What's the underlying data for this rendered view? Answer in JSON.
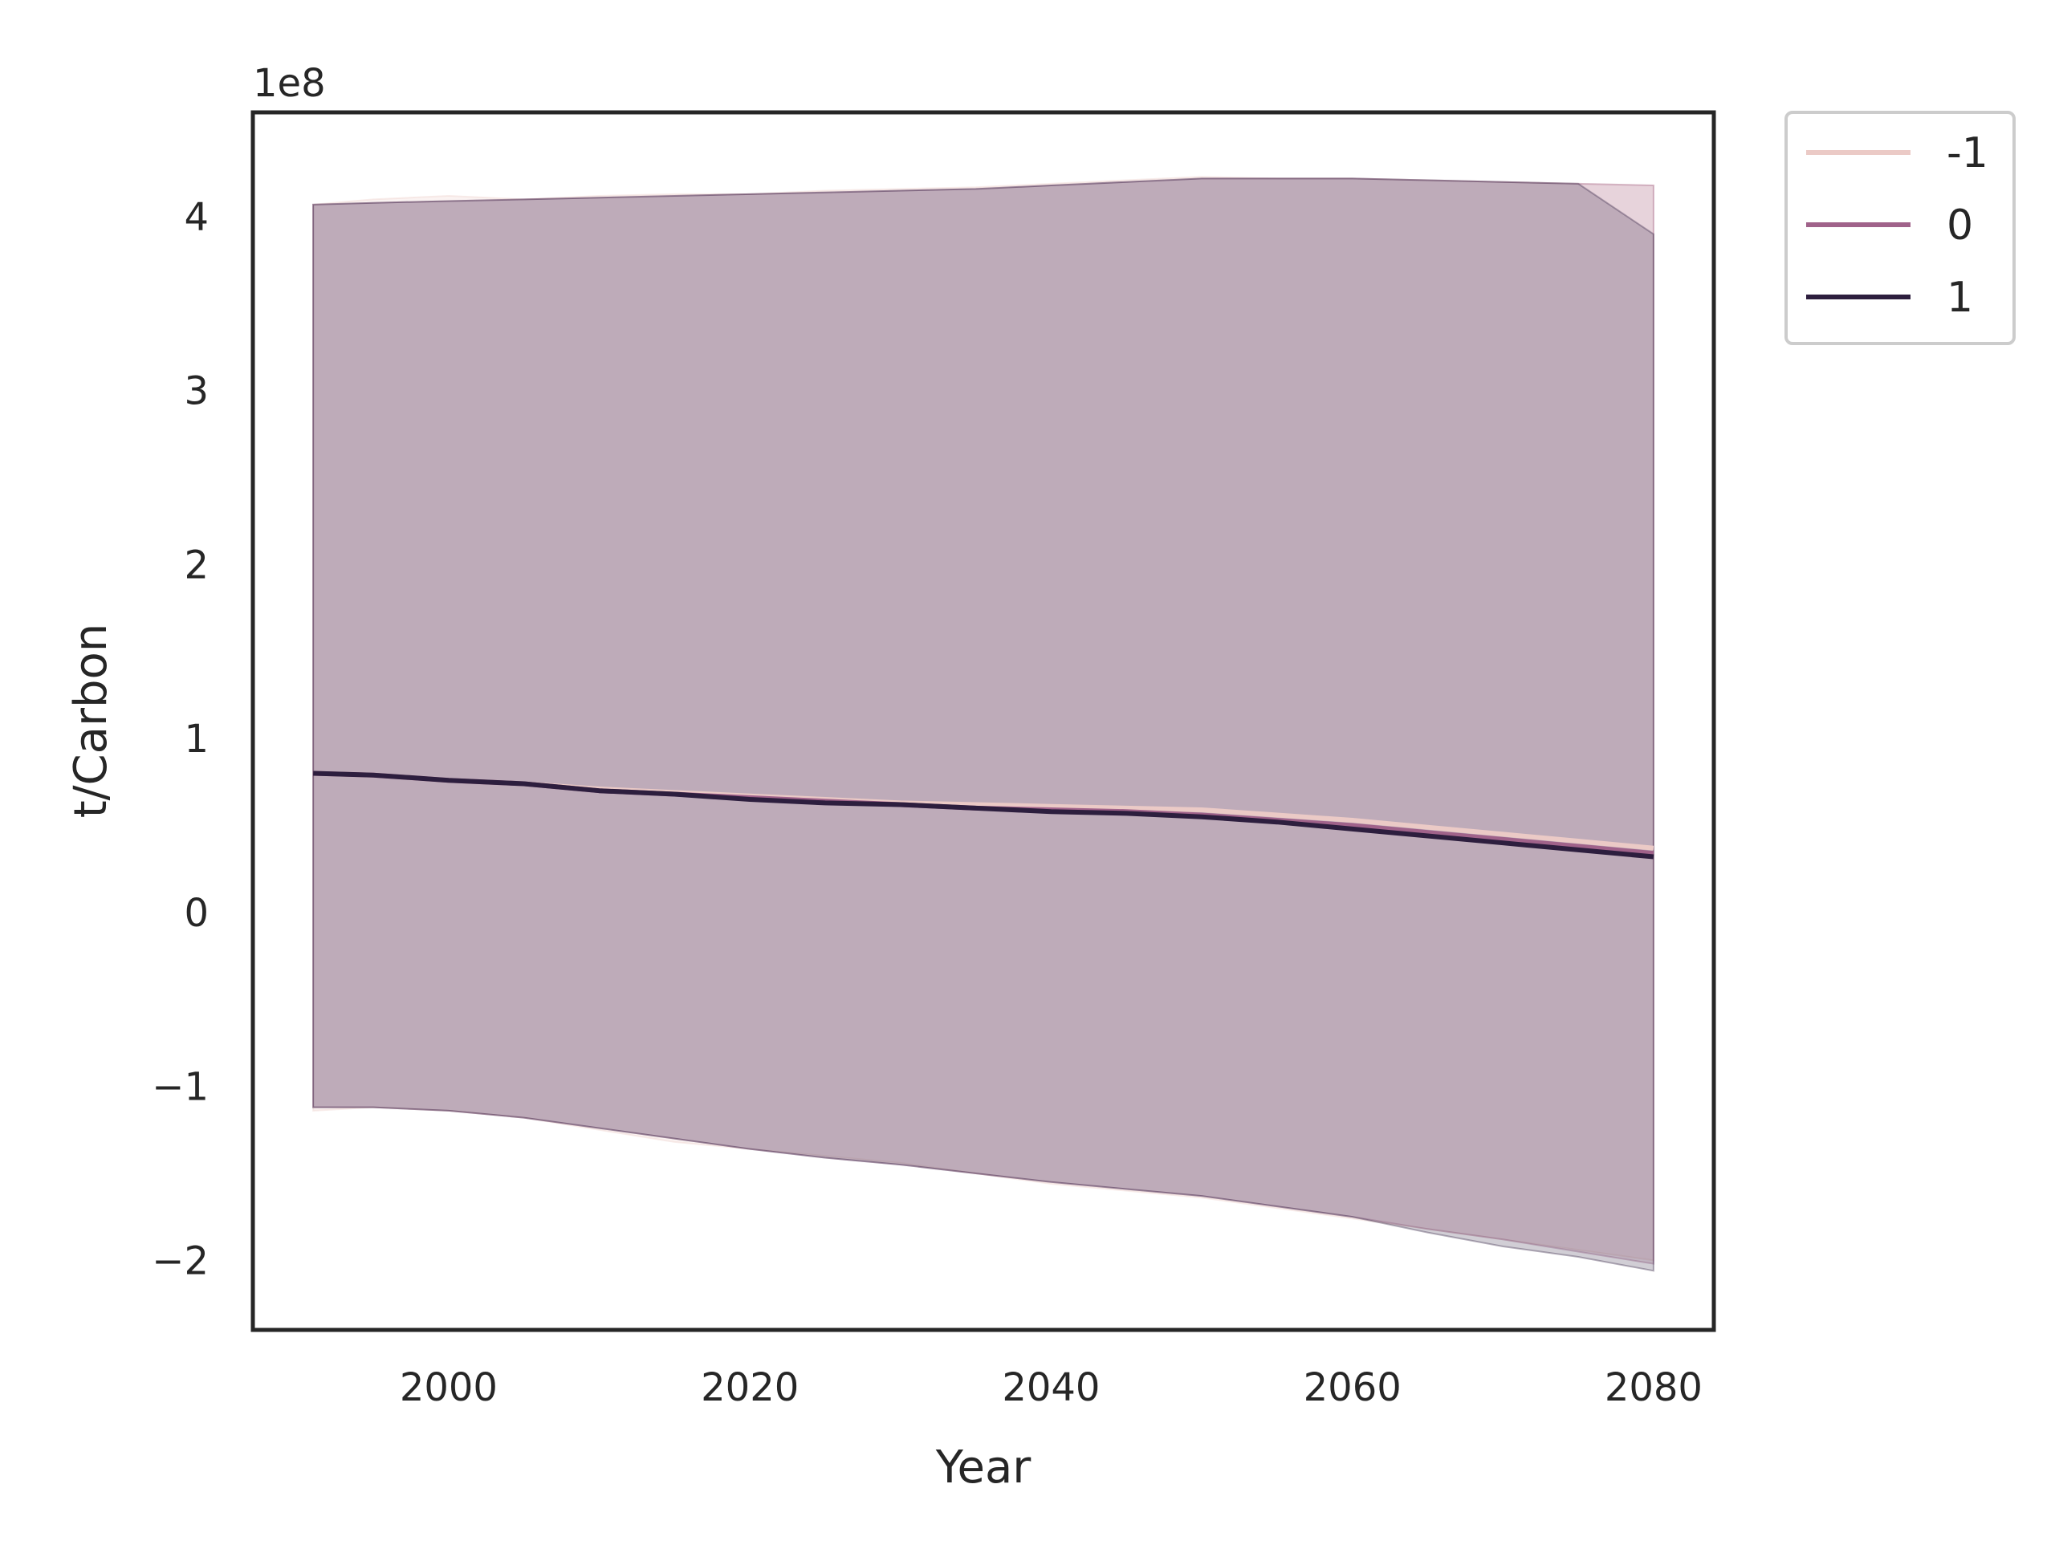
{
  "chart_data": {
    "type": "line",
    "xlabel": "Year",
    "ylabel": "t/Carbon",
    "offset_label": "1e8",
    "xlim": [
      1987,
      2084
    ],
    "ylim": [
      -2.4,
      4.6
    ],
    "xticks": [
      2000,
      2020,
      2040,
      2060,
      2080
    ],
    "xtick_labels": [
      "2000",
      "2020",
      "2040",
      "2060",
      "2080"
    ],
    "yticks": [
      -2,
      -1,
      0,
      1,
      2,
      3,
      4
    ],
    "ytick_labels": [
      "−2",
      "−1",
      "0",
      "1",
      "2",
      "3",
      "4"
    ],
    "grid": false,
    "legend_position": "outside-top-right",
    "x": [
      1991,
      1995,
      2000,
      2005,
      2010,
      2015,
      2020,
      2025,
      2030,
      2035,
      2040,
      2045,
      2050,
      2055,
      2060,
      2065,
      2070,
      2075,
      2080
    ],
    "series": [
      {
        "name": "-1",
        "color": "#ebcac6",
        "values": [
          0.8,
          0.79,
          0.76,
          0.74,
          0.71,
          0.69,
          0.67,
          0.65,
          0.63,
          0.62,
          0.61,
          0.6,
          0.59,
          0.56,
          0.53,
          0.49,
          0.45,
          0.41,
          0.37
        ],
        "upper": [
          4.07,
          4.1,
          4.12,
          4.1,
          4.12,
          4.13,
          4.13,
          4.15,
          4.16,
          4.17,
          4.19,
          4.21,
          4.23,
          4.22,
          4.22,
          4.21,
          4.2,
          4.19,
          4.18
        ],
        "lower": [
          -1.14,
          -1.12,
          -1.14,
          -1.18,
          -1.25,
          -1.32,
          -1.36,
          -1.4,
          -1.44,
          -1.5,
          -1.56,
          -1.6,
          -1.64,
          -1.7,
          -1.76,
          -1.82,
          -1.88,
          -1.94,
          -2.0
        ]
      },
      {
        "name": "0",
        "color": "#a0628a",
        "values": [
          0.8,
          0.79,
          0.76,
          0.74,
          0.7,
          0.68,
          0.66,
          0.64,
          0.62,
          0.6,
          0.59,
          0.58,
          0.56,
          0.53,
          0.5,
          0.46,
          0.42,
          0.38,
          0.34
        ],
        "upper": [
          4.07,
          4.08,
          4.09,
          4.1,
          4.11,
          4.12,
          4.13,
          4.14,
          4.15,
          4.16,
          4.18,
          4.2,
          4.22,
          4.22,
          4.22,
          4.21,
          4.2,
          4.19,
          4.18
        ],
        "lower": [
          -1.12,
          -1.12,
          -1.14,
          -1.18,
          -1.24,
          -1.3,
          -1.36,
          -1.41,
          -1.45,
          -1.5,
          -1.55,
          -1.59,
          -1.63,
          -1.69,
          -1.75,
          -1.82,
          -1.88,
          -1.95,
          -2.02
        ]
      },
      {
        "name": "1",
        "color": "#2d1e3e",
        "values": [
          0.8,
          0.79,
          0.76,
          0.74,
          0.7,
          0.68,
          0.65,
          0.63,
          0.62,
          0.6,
          0.58,
          0.57,
          0.55,
          0.52,
          0.48,
          0.44,
          0.4,
          0.36,
          0.32
        ],
        "upper": [
          4.07,
          4.08,
          4.09,
          4.1,
          4.11,
          4.12,
          4.13,
          4.14,
          4.15,
          4.16,
          4.18,
          4.2,
          4.22,
          4.22,
          4.22,
          4.21,
          4.2,
          4.19,
          3.9
        ],
        "lower": [
          -1.12,
          -1.12,
          -1.14,
          -1.18,
          -1.24,
          -1.3,
          -1.36,
          -1.41,
          -1.45,
          -1.5,
          -1.55,
          -1.59,
          -1.63,
          -1.69,
          -1.75,
          -1.84,
          -1.92,
          -1.98,
          -2.06
        ]
      }
    ]
  }
}
